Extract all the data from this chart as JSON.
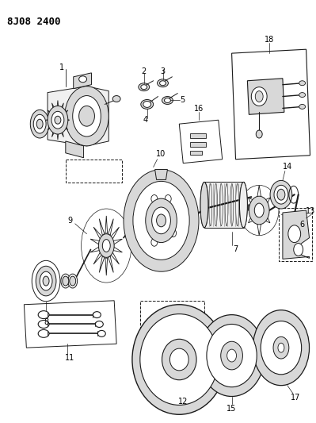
{
  "title": "8J08 2400",
  "bg_color": "#ffffff",
  "text_color": "#000000",
  "title_fontsize": 9,
  "fig_width": 3.99,
  "fig_height": 5.33,
  "dpi": 100,
  "line_color": "#1a1a1a",
  "lw": 0.7
}
